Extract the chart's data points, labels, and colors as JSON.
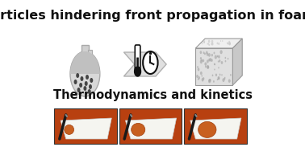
{
  "title": "Particles hindering front propagation in foams",
  "subtitle": "Thermodynamics and kinetics",
  "bg_color": "#ffffff",
  "title_fontsize": 11.5,
  "subtitle_fontsize": 10.5,
  "arrow_color": "#d0d0d0",
  "arrow_edge_color": "#c0c0c0",
  "photo_bg_color": "#b84010",
  "photo_border_color": "#333333",
  "foam_color_top": "#e8e8e8",
  "foam_color_side": "#b0b0b0",
  "flask_body_color": "#d8d8d8",
  "flask_neck_color": "#d0d0d0",
  "particle_color": "#444444",
  "thermometer_color": "#111111",
  "clock_color": "#111111",
  "foam_panel_color": "#f0f0f0"
}
